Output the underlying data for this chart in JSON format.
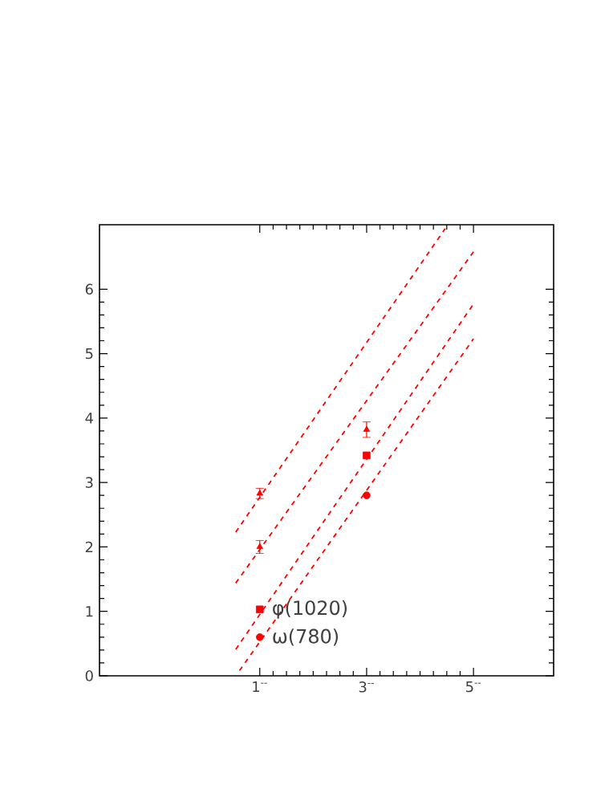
{
  "chart_data": {
    "type": "scatter",
    "xlim": [
      -2,
      6.5
    ],
    "ylim": [
      0,
      7
    ],
    "xticks": [
      {
        "value": 1,
        "label": "1$^{--}$"
      },
      {
        "value": 3,
        "label": "3$^{--}$"
      },
      {
        "value": 5,
        "label": "5$^{--}$"
      }
    ],
    "yticks": [
      0,
      1,
      2,
      3,
      4,
      5,
      6
    ],
    "grid": false,
    "series": [
      {
        "marker": "triangle",
        "color": "#ff0000",
        "x": [
          1
        ],
        "values": [
          2.83
        ],
        "errors": [
          0.08
        ]
      },
      {
        "marker": "triangle",
        "color": "#ff0000",
        "x": [
          1,
          3
        ],
        "values": [
          2.0,
          3.82
        ],
        "errors": [
          0.1,
          0.12
        ]
      },
      {
        "marker": "square",
        "color": "#ff0000",
        "x": [
          1,
          3
        ],
        "values": [
          1.03,
          3.42
        ]
      },
      {
        "marker": "circle",
        "color": "#ff0000",
        "x": [
          1,
          3
        ],
        "values": [
          0.6,
          2.8
        ]
      },
      {
        "type": "line",
        "line_style": "dashed",
        "color": "#ff0000",
        "x": [
          0.55,
          4.47
        ],
        "values": [
          2.23,
          6.94
        ]
      },
      {
        "type": "line",
        "line_style": "dashed",
        "color": "#ff0000",
        "x": [
          0.55,
          5.0
        ],
        "values": [
          1.44,
          6.58
        ]
      },
      {
        "type": "line",
        "line_style": "dashed",
        "color": "#ff0000",
        "x": [
          0.55,
          5.0
        ],
        "values": [
          0.41,
          5.77
        ]
      },
      {
        "type": "line",
        "line_style": "dashed",
        "color": "#ff0000",
        "x": [
          0.62,
          5.0
        ],
        "values": [
          0.08,
          5.23
        ]
      }
    ],
    "annotations": [
      {
        "text": "φ(1020)",
        "x": 1,
        "y": 1.03
      },
      {
        "text": "ω(780)",
        "x": 1,
        "y": 0.6
      }
    ]
  }
}
